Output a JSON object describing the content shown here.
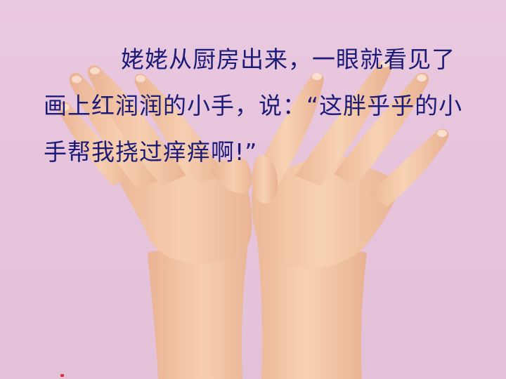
{
  "slide": {
    "caption_lines": [
      "姥姥从厨房出来，一眼就看见了",
      "画上红润润的小手，说：“这胖乎乎的小",
      "手帮我挠过痒痒啊!”"
    ]
  },
  "colors": {
    "background": "#e7c6dd",
    "text": "#1c1c78",
    "skin": "#f3c9a8",
    "skin_shadow": "#e4a888"
  }
}
